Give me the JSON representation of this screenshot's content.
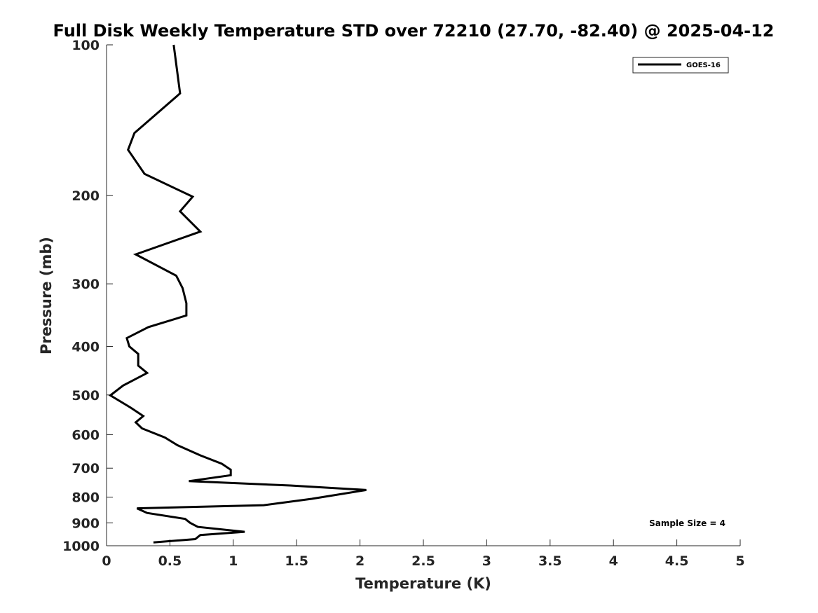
{
  "chart_data": {
    "type": "line",
    "title": "Full Disk Weekly Temperature STD over 72210 (27.70, -82.40) @ 2025-04-12",
    "xlabel": "Temperature (K)",
    "ylabel": "Pressure (mb)",
    "xlim": [
      0,
      5
    ],
    "ylim": [
      1000,
      100
    ],
    "yscale": "log",
    "x_ticks": [
      0,
      0.5,
      1,
      1.5,
      2,
      2.5,
      3,
      3.5,
      4,
      4.5,
      5
    ],
    "x_tick_labels": [
      "0",
      "0.5",
      "1",
      "1.5",
      "2",
      "2.5",
      "3",
      "3.5",
      "4",
      "4.5",
      "5"
    ],
    "y_ticks": [
      100,
      200,
      300,
      400,
      500,
      600,
      700,
      800,
      900,
      1000
    ],
    "y_tick_labels": [
      "100",
      "200",
      "300",
      "400",
      "500",
      "600",
      "700",
      "800",
      "900",
      "1000"
    ],
    "grid": false,
    "legend_position": "top-right",
    "series": [
      {
        "name": "GOES-16",
        "color": "#000000",
        "points": [
          [
            0.53,
            100
          ],
          [
            0.58,
            125
          ],
          [
            0.22,
            150
          ],
          [
            0.17,
            162
          ],
          [
            0.3,
            181
          ],
          [
            0.68,
            201
          ],
          [
            0.58,
            215
          ],
          [
            0.74,
            236
          ],
          [
            0.23,
            262
          ],
          [
            0.55,
            289
          ],
          [
            0.6,
            306
          ],
          [
            0.63,
            328
          ],
          [
            0.63,
            347
          ],
          [
            0.33,
            366
          ],
          [
            0.16,
            385
          ],
          [
            0.18,
            400
          ],
          [
            0.25,
            414
          ],
          [
            0.25,
            437
          ],
          [
            0.32,
            452
          ],
          [
            0.13,
            479
          ],
          [
            0.03,
            501
          ],
          [
            0.19,
            530
          ],
          [
            0.29,
            551
          ],
          [
            0.23,
            567
          ],
          [
            0.28,
            583
          ],
          [
            0.46,
            608
          ],
          [
            0.56,
            630
          ],
          [
            0.74,
            660
          ],
          [
            0.91,
            686
          ],
          [
            0.98,
            705
          ],
          [
            0.98,
            723
          ],
          [
            0.65,
            743
          ],
          [
            1.45,
            758
          ],
          [
            2.05,
            774
          ],
          [
            1.62,
            806
          ],
          [
            1.24,
            830
          ],
          [
            0.24,
            842
          ],
          [
            0.32,
            860
          ],
          [
            0.62,
            884
          ],
          [
            0.66,
            900
          ],
          [
            0.72,
            917
          ],
          [
            1.09,
            938
          ],
          [
            0.74,
            952
          ],
          [
            0.7,
            970
          ],
          [
            0.37,
            985
          ]
        ]
      }
    ],
    "annotation": "Sample Size = 4"
  }
}
